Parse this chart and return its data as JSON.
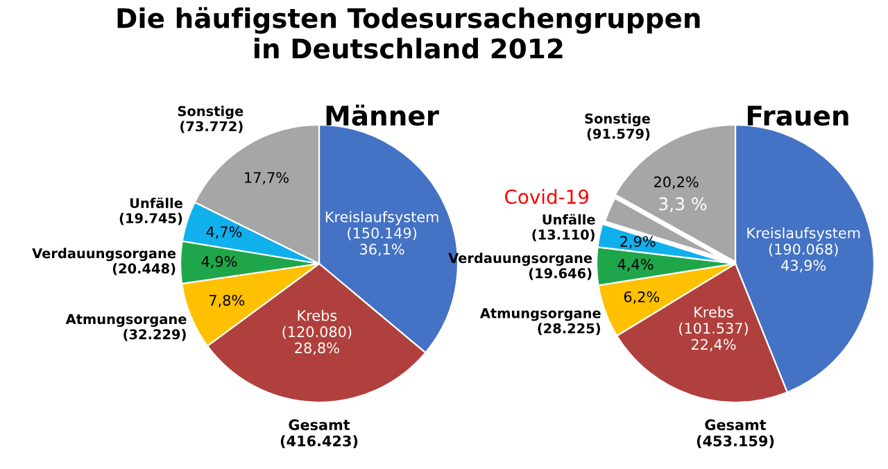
{
  "chart_data": [
    {
      "type": "pie",
      "title": "Männer",
      "categories": [
        "Kreislaufsystem\n(150.149)",
        "Krebs\n(120.080)",
        "Atmungsorgane\n(32.229)",
        "Verdauungsorgane\n(20.448)",
        "Unfälle\n(19.745)",
        "Sonstige\n(73.772)"
      ],
      "values": [
        36.1,
        28.8,
        7.8,
        4.9,
        4.7,
        17.7
      ],
      "value_labels": [
        "36,1%",
        "28,8%",
        "7,8%",
        "4,9%",
        "4,7%",
        "17,7%"
      ],
      "colors": [
        "#4472c4",
        "#b0403d",
        "#ffc000",
        "#1fa64a",
        "#10b0ec",
        "#a6a6a6"
      ],
      "annotations": [
        "Die häufigsten Todesursachengruppen\nin Deutschland 2012",
        "Gesamt\n(416.423)"
      ]
    },
    {
      "type": "pie",
      "title": "Frauen",
      "categories": [
        "Kreislaufsystem\n(190.068)",
        "Krebs\n(101.537)",
        "Atmungsorgane\n(28.225)",
        "Verdauungsorgane\n(19.646)",
        "Unfälle\n(13.110)",
        "Sonstige\n(91.579)"
      ],
      "values": [
        43.9,
        22.4,
        6.2,
        4.4,
        2.9,
        20.2
      ],
      "value_labels": [
        "43,9%",
        "22,4%",
        "6,2%",
        "4,4%",
        "2,9%",
        "20,2%"
      ],
      "colors": [
        "#4472c4",
        "#b0403d",
        "#ffc000",
        "#1fa64a",
        "#10b0ec",
        "#a6a6a6"
      ],
      "annotations": [
        "Gesamt\n(453.159)",
        "Covid-19",
        "3,3 %"
      ]
    }
  ]
}
